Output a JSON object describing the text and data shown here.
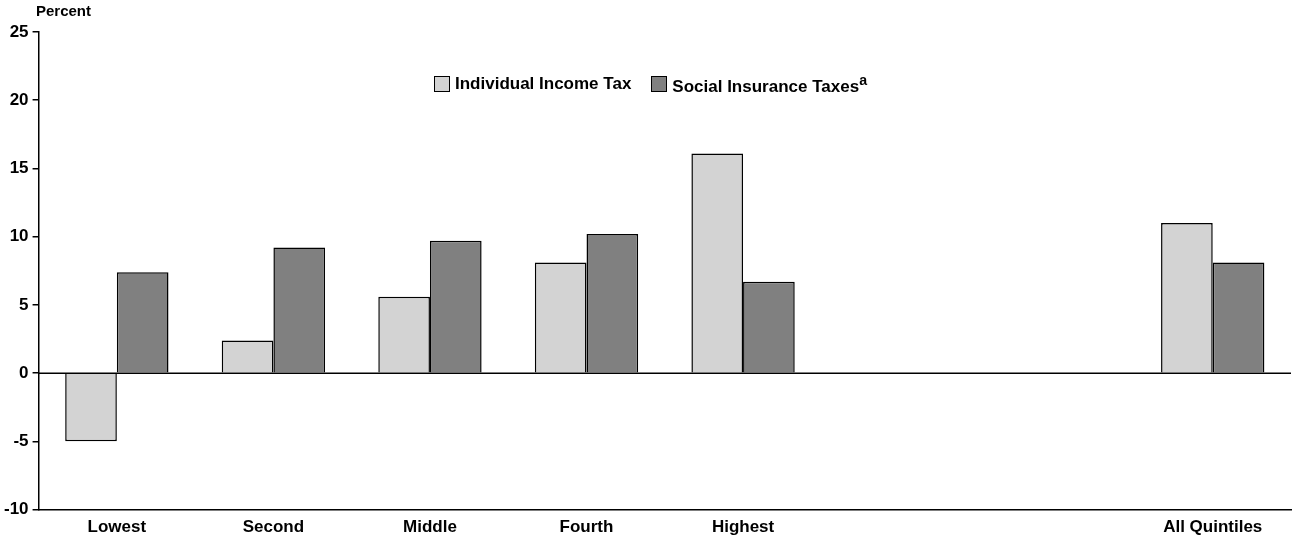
{
  "chart_data": {
    "type": "bar",
    "ylabel": "Percent",
    "categories": [
      "Lowest",
      "Second",
      "Middle",
      "Fourth",
      "Highest",
      null,
      null,
      "All Quintiles"
    ],
    "series": [
      {
        "name": "Individual Income Tax",
        "color": "#d3d3d3",
        "values": [
          -5.0,
          2.4,
          5.6,
          8.1,
          16.1,
          null,
          null,
          11.0
        ]
      },
      {
        "name": "Social Insurance Taxes$^{a}$",
        "color": "#808080",
        "values": [
          7.4,
          9.2,
          9.7,
          10.2,
          6.7,
          null,
          null,
          8.1
        ]
      }
    ],
    "ylim": [
      -10,
      25
    ],
    "yticks": [
      -10,
      -5,
      0,
      5,
      10,
      15,
      20,
      25
    ],
    "grid": false,
    "legend": "top",
    "ref_lines": [
      {
        "axis": "y",
        "value": 0,
        "color": "#000000"
      }
    ]
  }
}
